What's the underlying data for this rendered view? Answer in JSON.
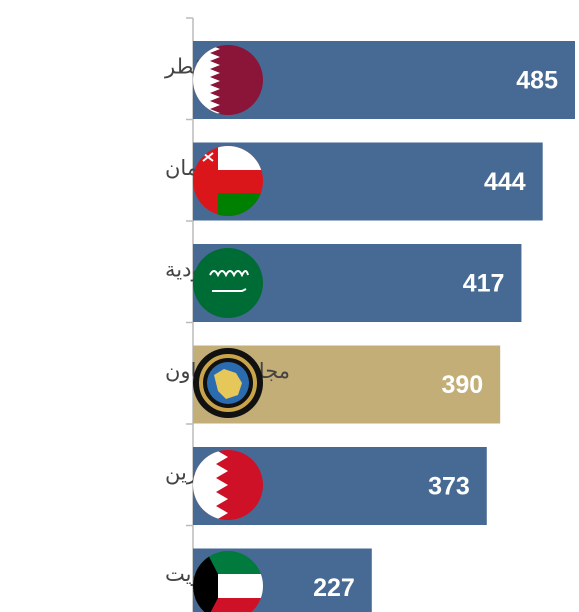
{
  "chart_data": {
    "type": "barh",
    "categories": [
      "قطر",
      "عُمان",
      "السعودية",
      "مجلس التعاون",
      "البحرين",
      "الكويت"
    ],
    "values": [
      485,
      444,
      417,
      390,
      373,
      227
    ],
    "colors": [
      "#466a94",
      "#466a94",
      "#466a94",
      "#c3ae78",
      "#466a94",
      "#466a94"
    ],
    "xlim": [
      0,
      485
    ]
  }
}
